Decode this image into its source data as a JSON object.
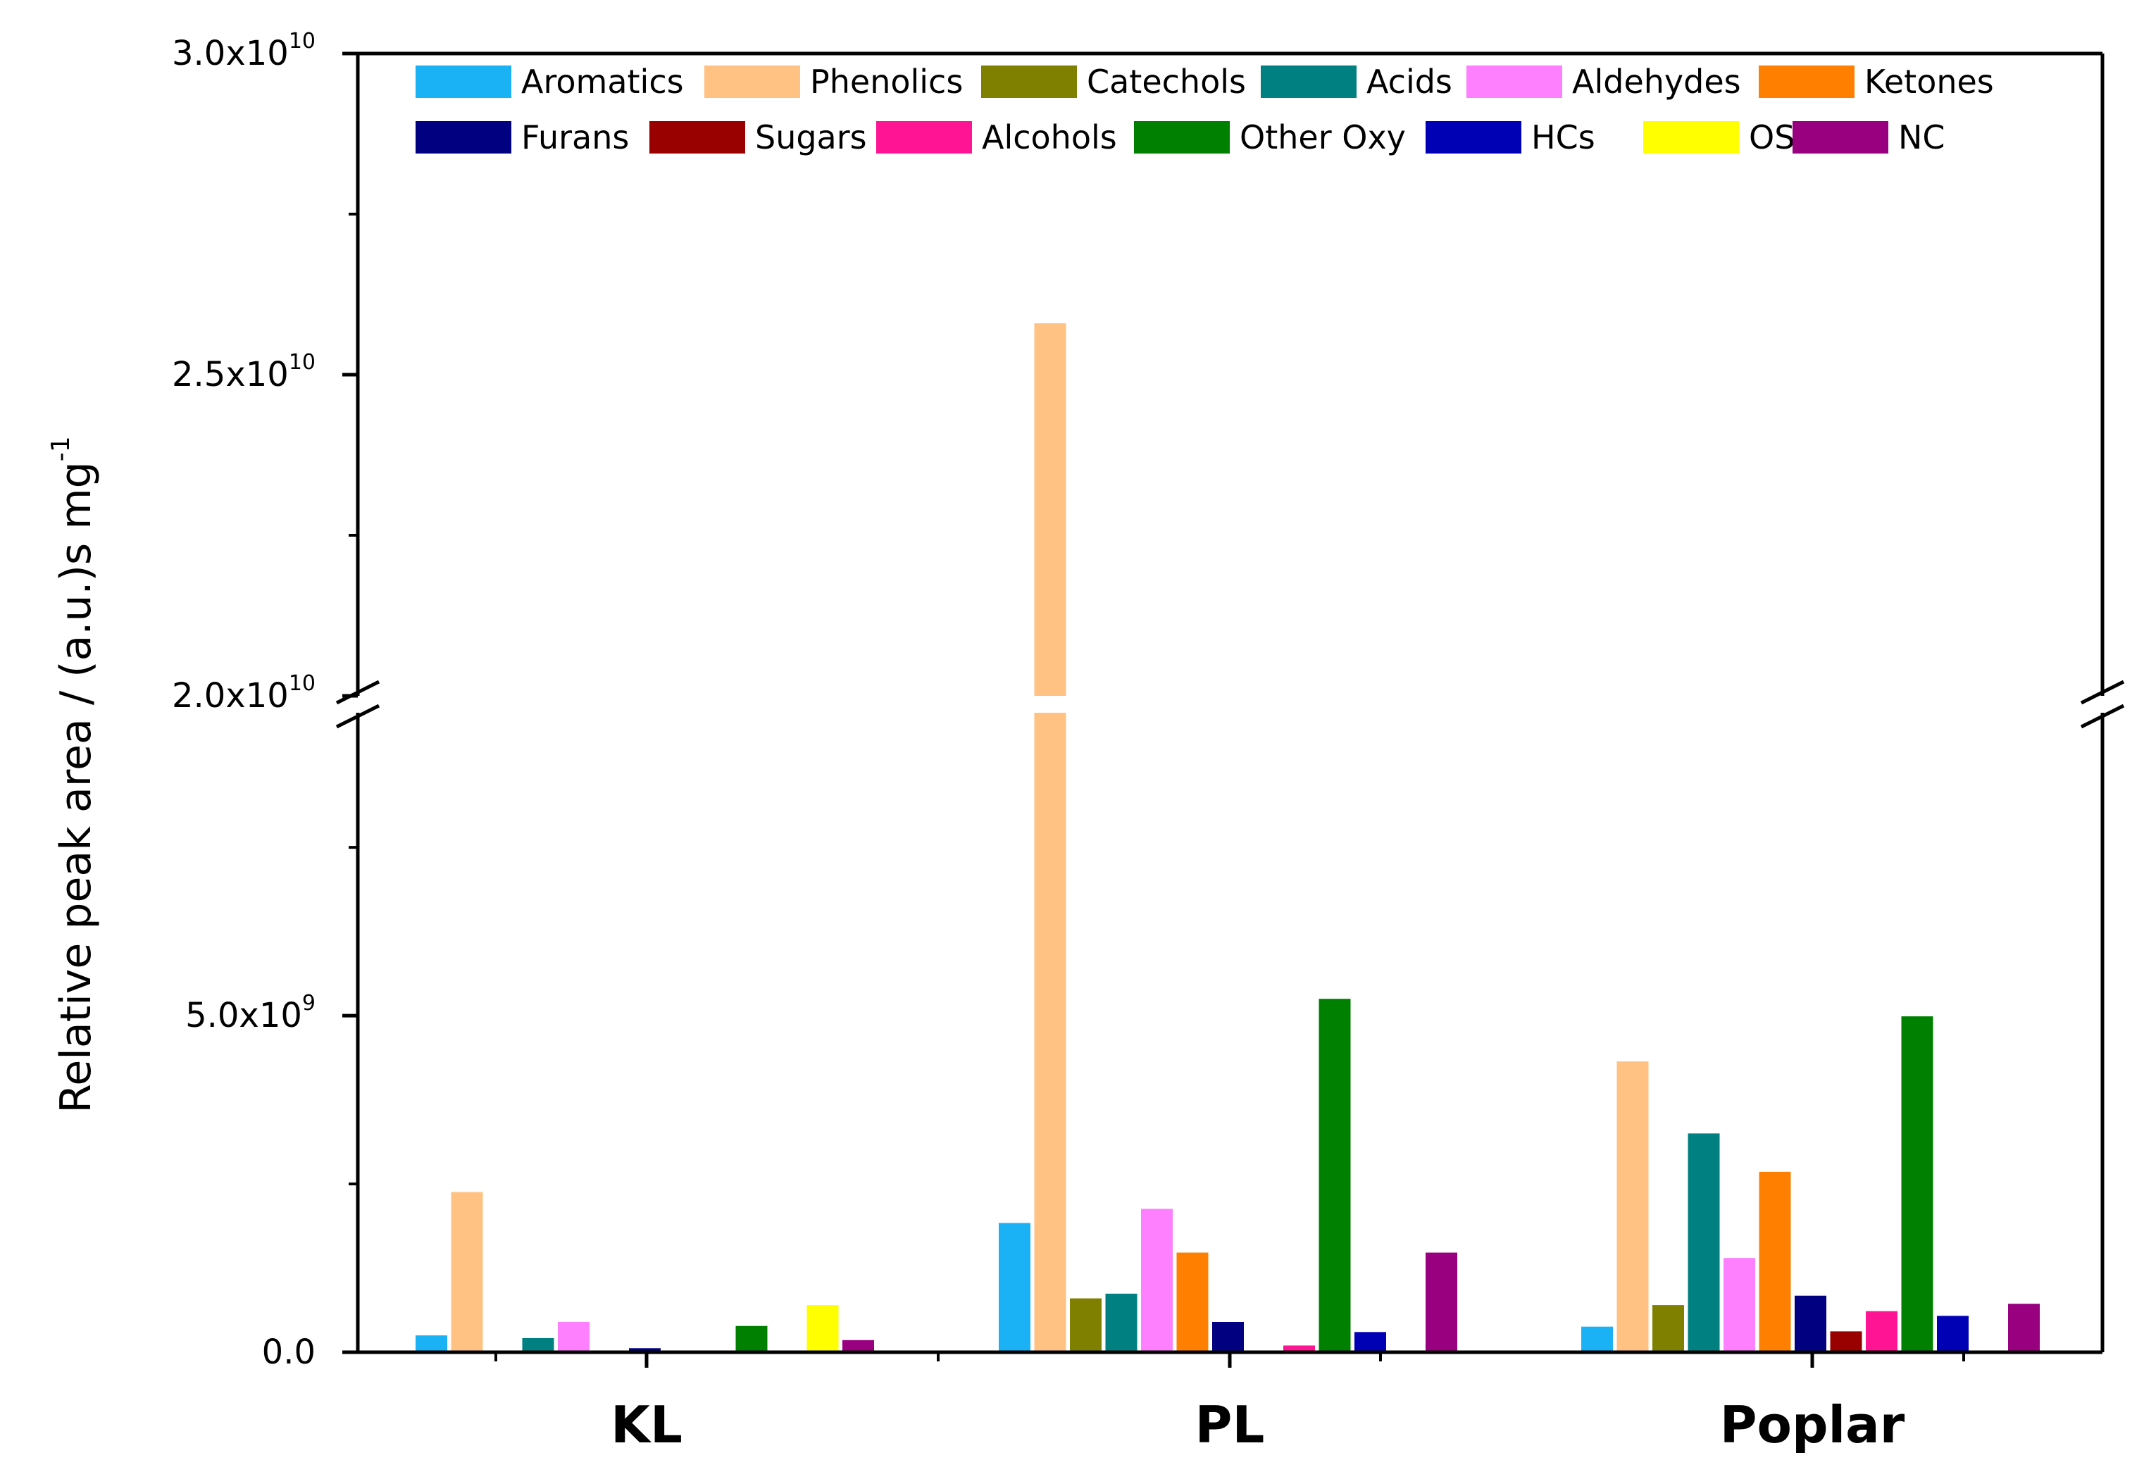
{
  "chart_data": {
    "type": "bar",
    "title": "",
    "xlabel": "",
    "ylabel": "Relative peak area / (a.u.)s mg",
    "ylabel_superscript": "-1",
    "categories": [
      "KL",
      "PL",
      "Poplar"
    ],
    "axis_break": {
      "lower_range": [
        0,
        9500000000.0
      ],
      "upper_range": [
        20000000000.0,
        30000000000.0
      ]
    },
    "y_ticks": [
      {
        "value": 0,
        "mantissa": "0.0",
        "exponent": ""
      },
      {
        "value": 5000000000.0,
        "mantissa": "5.0x10",
        "exponent": "9"
      },
      {
        "value": 20000000000.0,
        "mantissa": "2.0x10",
        "exponent": "10"
      },
      {
        "value": 25000000000.0,
        "mantissa": "2.5x10",
        "exponent": "10"
      },
      {
        "value": 30000000000.0,
        "mantissa": "3.0x10",
        "exponent": "10"
      }
    ],
    "y_minor_ticks": [
      2500000000.0,
      7500000000.0,
      22500000000.0,
      27500000000.0
    ],
    "legend_position": "top",
    "series": [
      {
        "name": "Aromatics",
        "color": "#1ab2f5",
        "values": [
          250000000.0,
          1920000000.0,
          380000000.0
        ]
      },
      {
        "name": "Phenolics",
        "color": "#ffc283",
        "values": [
          2380000000.0,
          25800000000.0,
          4320000000.0
        ]
      },
      {
        "name": "Catechols",
        "color": "#808000",
        "values": [
          0,
          800000000.0,
          700000000.0
        ]
      },
      {
        "name": "Acids",
        "color": "#008080",
        "values": [
          210000000.0,
          870000000.0,
          3250000000.0
        ]
      },
      {
        "name": "Aldehydes",
        "color": "#ff80ff",
        "values": [
          450000000.0,
          2130000000.0,
          1400000000.0
        ]
      },
      {
        "name": "Ketones",
        "color": "#ff8000",
        "values": [
          0,
          1480000000.0,
          2680000000.0
        ]
      },
      {
        "name": "Furans",
        "color": "#000080",
        "values": [
          60000000.0,
          450000000.0,
          840000000.0
        ]
      },
      {
        "name": "Sugars",
        "color": "#990000",
        "values": [
          0,
          0,
          310000000.0
        ]
      },
      {
        "name": "Alcohols",
        "color": "#ff1493",
        "values": [
          0,
          100000000.0,
          610000000.0
        ]
      },
      {
        "name": "Other Oxy",
        "color": "#008000",
        "values": [
          390000000.0,
          5250000000.0,
          4990000000.0
        ]
      },
      {
        "name": "HCs",
        "color": "#0000b4",
        "values": [
          0,
          300000000.0,
          540000000.0
        ]
      },
      {
        "name": "OSC",
        "color": "#ffff00",
        "values": [
          700000000.0,
          0,
          0
        ]
      },
      {
        "name": "NC",
        "color": "#990080",
        "values": [
          180000000.0,
          1480000000.0,
          720000000.0
        ]
      }
    ]
  }
}
